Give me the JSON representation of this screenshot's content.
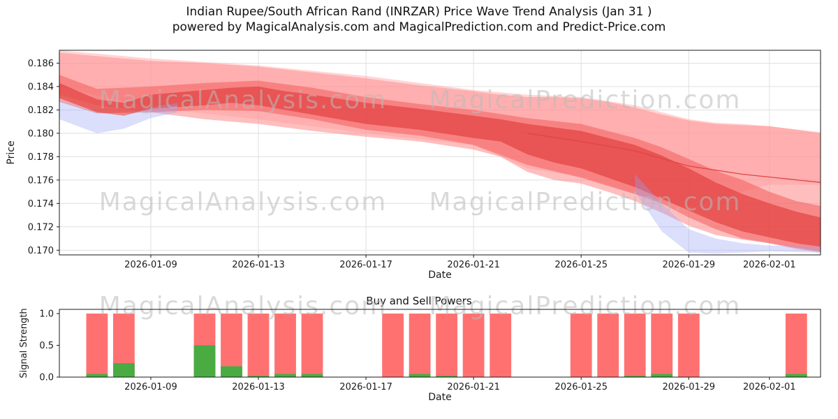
{
  "figure_title": {
    "line1": "Indian Rupee/South African Rand (INRZAR) Price Wave Trend Analysis (Jan 31 )",
    "line2": "powered by MagicalAnalysis.com and MagicalPrediction.com and Predict-Price.com"
  },
  "watermarks": {
    "left": "MagicalAnalysis.com",
    "right": "MagicalPrediction.com"
  },
  "chart_data": [
    {
      "type": "area",
      "name": "price-wave-trend",
      "title": "",
      "xlabel": "Date",
      "ylabel": "Price",
      "x_epoch": "2026-01-06",
      "x_domain_days": [
        -0.4,
        27.9
      ],
      "y_domain": [
        0.1696,
        0.1871
      ],
      "y_ticks": [
        0.17,
        0.172,
        0.174,
        0.176,
        0.178,
        0.18,
        0.182,
        0.184,
        0.186
      ],
      "y_tick_labels": [
        "0.170",
        "0.172",
        "0.174",
        "0.176",
        "0.178",
        "0.180",
        "0.182",
        "0.184",
        "0.186"
      ],
      "x_ticks": [
        "2026-01-09",
        "2026-01-13",
        "2026-01-17",
        "2026-01-21",
        "2026-01-25",
        "2026-01-29",
        "2026-02-01"
      ],
      "grid": true,
      "bands": [
        {
          "name": "outer",
          "color": "#ff7d7d",
          "opacity": 0.5,
          "points": [
            [
              -0.4,
              0.1833,
              0.1869
            ],
            [
              1,
              0.1824,
              0.1866
            ],
            [
              3,
              0.1818,
              0.1862
            ],
            [
              5,
              0.1812,
              0.186
            ],
            [
              7,
              0.1808,
              0.1857
            ],
            [
              9,
              0.1802,
              0.1852
            ],
            [
              11,
              0.1797,
              0.1847
            ],
            [
              13,
              0.1793,
              0.1841
            ],
            [
              15,
              0.1786,
              0.1836
            ],
            [
              16,
              0.178,
              0.1833
            ],
            [
              17,
              0.1767,
              0.1831
            ],
            [
              18,
              0.176,
              0.1831
            ],
            [
              19,
              0.1757,
              0.183
            ],
            [
              20,
              0.175,
              0.1827
            ],
            [
              21,
              0.1742,
              0.1822
            ],
            [
              22,
              0.1732,
              0.1816
            ],
            [
              23,
              0.1721,
              0.1811
            ],
            [
              24,
              0.1713,
              0.1808
            ],
            [
              25,
              0.1709,
              0.1807
            ],
            [
              26,
              0.1706,
              0.1806
            ],
            [
              27,
              0.1701,
              0.1803
            ],
            [
              27.9,
              0.1698,
              0.18
            ]
          ]
        },
        {
          "name": "outer2",
          "color": "#ff9a9a",
          "opacity": 0.42,
          "points": [
            [
              -0.4,
              0.184,
              0.1871
            ],
            [
              3,
              0.1822,
              0.1864
            ],
            [
              7,
              0.1812,
              0.1858
            ],
            [
              11,
              0.18,
              0.1849
            ],
            [
              15,
              0.179,
              0.1837
            ],
            [
              17,
              0.177,
              0.1833
            ],
            [
              19,
              0.1763,
              0.1831
            ],
            [
              21,
              0.1748,
              0.1824
            ],
            [
              23,
              0.1736,
              0.1812
            ],
            [
              24,
              0.1745,
              0.1809
            ],
            [
              25,
              0.175,
              0.1808
            ],
            [
              26,
              0.1756,
              0.1806
            ],
            [
              27.9,
              0.1756,
              0.1801
            ]
          ]
        },
        {
          "name": "mid",
          "color": "#f25c5c",
          "opacity": 0.55,
          "points": [
            [
              -0.4,
              0.1827,
              0.185
            ],
            [
              1,
              0.1817,
              0.1838
            ],
            [
              3,
              0.1818,
              0.184
            ],
            [
              5,
              0.182,
              0.1843
            ],
            [
              7,
              0.1819,
              0.1845
            ],
            [
              9,
              0.1812,
              0.1839
            ],
            [
              11,
              0.1803,
              0.1831
            ],
            [
              13,
              0.1798,
              0.1825
            ],
            [
              15,
              0.179,
              0.182
            ],
            [
              17,
              0.1773,
              0.1813
            ],
            [
              19,
              0.1762,
              0.1808
            ],
            [
              21,
              0.1748,
              0.1796
            ],
            [
              22,
              0.174,
              0.1788
            ],
            [
              23,
              0.1728,
              0.1778
            ],
            [
              24,
              0.1718,
              0.1768
            ],
            [
              25,
              0.171,
              0.176
            ],
            [
              26,
              0.1706,
              0.175
            ],
            [
              27,
              0.1702,
              0.1742
            ],
            [
              27.9,
              0.1699,
              0.1738
            ]
          ]
        },
        {
          "name": "core",
          "color": "#e03535",
          "opacity": 0.6,
          "points": [
            [
              -0.4,
              0.183,
              0.1843
            ],
            [
              1,
              0.1818,
              0.1829
            ],
            [
              2,
              0.1815,
              0.1826
            ],
            [
              3,
              0.1821,
              0.1833
            ],
            [
              5,
              0.1824,
              0.1837
            ],
            [
              6,
              0.1826,
              0.1839
            ],
            [
              7,
              0.1824,
              0.184
            ],
            [
              8,
              0.182,
              0.1836
            ],
            [
              9,
              0.1816,
              0.1833
            ],
            [
              11,
              0.1808,
              0.1826
            ],
            [
              13,
              0.1803,
              0.1821
            ],
            [
              15,
              0.1796,
              0.1815
            ],
            [
              16,
              0.1793,
              0.1812
            ],
            [
              17,
              0.1782,
              0.1808
            ],
            [
              18,
              0.1775,
              0.1805
            ],
            [
              19,
              0.177,
              0.1802
            ],
            [
              20,
              0.1762,
              0.1796
            ],
            [
              21,
              0.1754,
              0.179
            ],
            [
              22,
              0.1744,
              0.1781
            ],
            [
              23,
              0.1734,
              0.177
            ],
            [
              24,
              0.1724,
              0.1758
            ],
            [
              25,
              0.1716,
              0.1748
            ],
            [
              26,
              0.1711,
              0.174
            ],
            [
              27,
              0.1706,
              0.1733
            ],
            [
              27.9,
              0.1703,
              0.1728
            ]
          ]
        },
        {
          "name": "blue-left",
          "color": "#98a2f5",
          "opacity": 0.35,
          "points": [
            [
              -0.4,
              0.1812,
              0.1828
            ],
            [
              1,
              0.18,
              0.1818
            ],
            [
              2,
              0.1804,
              0.1815
            ],
            [
              3,
              0.1813,
              0.1822
            ],
            [
              4,
              0.1818,
              0.1826
            ]
          ]
        },
        {
          "name": "blue-right",
          "color": "#98a2f5",
          "opacity": 0.35,
          "points": [
            [
              21,
              0.175,
              0.1765
            ],
            [
              22,
              0.1716,
              0.174
            ],
            [
              23,
              0.1698,
              0.1718
            ],
            [
              24,
              0.1697,
              0.171
            ],
            [
              25,
              0.1698,
              0.1706
            ],
            [
              26,
              0.1699,
              0.1704
            ],
            [
              27.9,
              0.1698,
              0.1703
            ]
          ]
        }
      ],
      "trend_line": {
        "color": "#e04545",
        "points": [
          [
            17,
            0.18
          ],
          [
            19,
            0.1793
          ],
          [
            21,
            0.1785
          ],
          [
            23,
            0.1772
          ],
          [
            25,
            0.1765
          ],
          [
            27.9,
            0.1758
          ]
        ]
      }
    },
    {
      "type": "bar",
      "name": "buy-sell-powers",
      "title": "Buy and Sell Powers",
      "xlabel": "Date",
      "ylabel": "Signal Strength",
      "x_epoch": "2026-01-06",
      "x_domain_days": [
        -0.4,
        27.9
      ],
      "y_domain": [
        0,
        1.0665
      ],
      "y_ticks": [
        0.0,
        0.5,
        1.0
      ],
      "y_tick_labels": [
        "0.0",
        "0.5",
        "1.0"
      ],
      "x_ticks": [
        "2026-01-09",
        "2026-01-13",
        "2026-01-17",
        "2026-01-21",
        "2026-01-25",
        "2026-01-29",
        "2026-02-01"
      ],
      "grid": false,
      "bar_width_days": 0.8,
      "colors": {
        "sell": "#ff4242",
        "buy": "#3fae3f"
      },
      "bars": [
        {
          "date": "2026-01-07",
          "sell": 1.0,
          "buy": 0.05
        },
        {
          "date": "2026-01-08",
          "sell": 1.0,
          "buy": 0.22
        },
        {
          "date": "2026-01-11",
          "sell": 1.0,
          "buy": 0.5
        },
        {
          "date": "2026-01-12",
          "sell": 1.0,
          "buy": 0.17
        },
        {
          "date": "2026-01-13",
          "sell": 1.0,
          "buy": 0.02
        },
        {
          "date": "2026-01-14",
          "sell": 1.0,
          "buy": 0.05
        },
        {
          "date": "2026-01-15",
          "sell": 1.0,
          "buy": 0.05
        },
        {
          "date": "2026-01-18",
          "sell": 1.0,
          "buy": 0.0
        },
        {
          "date": "2026-01-19",
          "sell": 1.0,
          "buy": 0.05
        },
        {
          "date": "2026-01-20",
          "sell": 1.0,
          "buy": 0.02
        },
        {
          "date": "2026-01-21",
          "sell": 1.0,
          "buy": 0.0
        },
        {
          "date": "2026-01-22",
          "sell": 1.0,
          "buy": 0.0
        },
        {
          "date": "2026-01-25",
          "sell": 1.0,
          "buy": 0.0
        },
        {
          "date": "2026-01-26",
          "sell": 1.0,
          "buy": 0.0
        },
        {
          "date": "2026-01-27",
          "sell": 1.0,
          "buy": 0.02
        },
        {
          "date": "2026-01-28",
          "sell": 1.0,
          "buy": 0.05
        },
        {
          "date": "2026-01-29",
          "sell": 1.0,
          "buy": 0.0
        },
        {
          "date": "2026-02-02",
          "sell": 1.0,
          "buy": 0.05
        }
      ]
    }
  ]
}
